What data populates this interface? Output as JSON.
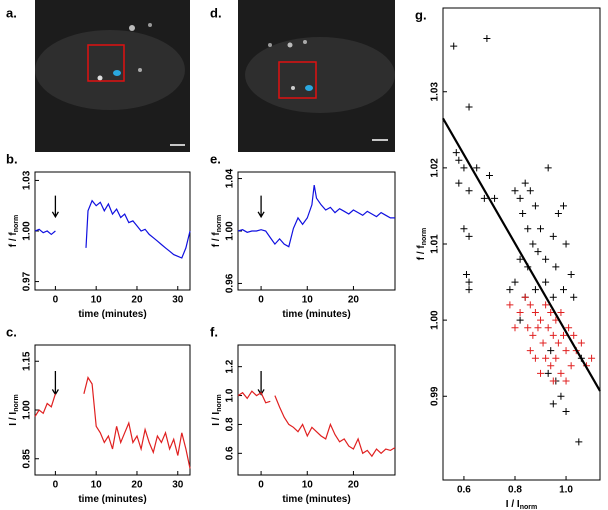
{
  "images": [
    {
      "label": "a."
    },
    {
      "label": "d."
    }
  ],
  "chart_data": [
    {
      "type": "line",
      "label": "b.",
      "ylabel": "f / f",
      "ylabel_sub": "norm",
      "xlabel": "time (minutes)",
      "xlim": [
        -5,
        33
      ],
      "xticks": [
        0,
        10,
        20,
        30
      ],
      "ylim": [
        0.965,
        1.035
      ],
      "yticks": [
        0.97,
        {
          "value": 1,
          "label": "1.00"
        },
        1.03
      ],
      "arrow_x": 0,
      "x": [
        -5,
        -4,
        -3,
        -2,
        -1,
        0,
        4,
        7.5,
        8,
        9,
        10,
        11,
        12,
        13,
        14,
        15,
        16,
        17,
        18,
        19,
        20,
        21,
        22,
        23,
        24,
        25,
        26,
        27,
        28,
        29,
        30,
        31,
        32,
        33
      ],
      "series": [
        {
          "color": "#1010e0",
          "values": [
            1.0,
            1.001,
            0.999,
            1.0,
            0.998,
            1.0,
            null,
            0.99,
            1.012,
            1.018,
            1.015,
            1.017,
            1.012,
            1.016,
            1.01,
            1.013,
            1.008,
            1.01,
            1.005,
            1.006,
            1.003,
            1.0,
            1.001,
            0.998,
            0.996,
            0.994,
            0.992,
            0.99,
            0.988,
            0.986,
            0.985,
            0.984,
            0.99,
            1.0
          ]
        }
      ]
    },
    {
      "type": "line",
      "label": "c.",
      "ylabel": "I / I",
      "ylabel_sub": "norm",
      "xlabel": "time (minutes)",
      "xlim": [
        -5,
        33
      ],
      "xticks": [
        0,
        10,
        20,
        30
      ],
      "ylim": [
        0.8,
        1.2
      ],
      "yticks": [
        0.85,
        {
          "value": 1,
          "label": "1.00"
        },
        1.15
      ],
      "arrow_x": 0,
      "x": [
        -5,
        -4,
        -3,
        -2,
        -1,
        0,
        4,
        7,
        8,
        9,
        10,
        11,
        12,
        13,
        14,
        15,
        16,
        17,
        18,
        19,
        20,
        21,
        22,
        23,
        24,
        25,
        26,
        27,
        28,
        29,
        30,
        31,
        32,
        33
      ],
      "series": [
        {
          "color": "#e02020",
          "values": [
            0.98,
            1.0,
            0.99,
            1.02,
            1.01,
            1.05,
            null,
            1.05,
            1.1,
            1.08,
            0.95,
            0.93,
            0.9,
            0.92,
            0.88,
            0.95,
            0.9,
            0.93,
            0.96,
            0.9,
            0.92,
            0.88,
            0.94,
            0.9,
            0.87,
            0.92,
            0.9,
            0.93,
            0.88,
            0.91,
            0.86,
            0.93,
            0.88,
            0.82
          ]
        }
      ]
    },
    {
      "type": "line",
      "label": "e.",
      "ylabel": "f / f",
      "ylabel_sub": "norm",
      "xlabel": "time (minutes)",
      "xlim": [
        -5,
        29
      ],
      "xticks": [
        0,
        10,
        20
      ],
      "ylim": [
        0.955,
        1.045
      ],
      "yticks": [
        0.96,
        {
          "value": 1,
          "label": "1.00"
        },
        1.04
      ],
      "arrow_x": 0,
      "x": [
        -5,
        -4,
        -3,
        -2,
        -1,
        0,
        1,
        2,
        3,
        4,
        5,
        6,
        7,
        8,
        9,
        10,
        11,
        11.5,
        12,
        13,
        14,
        15,
        16,
        17,
        18,
        19,
        20,
        21,
        22,
        23,
        24,
        25,
        26,
        27,
        28,
        29
      ],
      "series": [
        {
          "color": "#1010e0",
          "values": [
            1.0,
            1.001,
            0.999,
            1.0,
            1.0,
            1.001,
            1.0,
            0.995,
            0.99,
            0.994,
            0.99,
            0.988,
            1.002,
            1.01,
            1.005,
            1.01,
            1.02,
            1.035,
            1.025,
            1.02,
            1.016,
            1.018,
            1.014,
            1.017,
            1.015,
            1.013,
            1.016,
            1.014,
            1.012,
            1.015,
            1.013,
            1.011,
            1.014,
            1.012,
            1.01,
            1.01
          ]
        }
      ]
    },
    {
      "type": "line",
      "label": "f.",
      "ylabel": "I / I",
      "ylabel_sub": "norm",
      "xlabel": "time (minutes)",
      "xlim": [
        -5,
        29
      ],
      "xticks": [
        0,
        10,
        20
      ],
      "ylim": [
        0.45,
        1.35
      ],
      "yticks": [
        0.6,
        0.8,
        {
          "value": 1,
          "label": "1.0"
        },
        1.2
      ],
      "arrow_x": 0,
      "x": [
        -5,
        -4,
        -3,
        -2,
        -1,
        0,
        1,
        2,
        2.5,
        3,
        4,
        5,
        6,
        7,
        8,
        9,
        10,
        11,
        12,
        13,
        14,
        15,
        16,
        17,
        18,
        19,
        20,
        21,
        22,
        23,
        24,
        25,
        26,
        27,
        28,
        29
      ],
      "series": [
        {
          "color": "#e02020",
          "values": [
            1.0,
            1.02,
            0.98,
            1.03,
            1.0,
            1.02,
            0.95,
            0.96,
            null,
            1.0,
            0.92,
            0.85,
            0.8,
            0.78,
            0.75,
            0.8,
            0.72,
            0.78,
            0.75,
            0.72,
            0.7,
            0.8,
            0.73,
            0.68,
            0.7,
            0.65,
            0.63,
            0.7,
            0.6,
            0.62,
            0.58,
            0.63,
            0.6,
            0.63,
            0.62,
            0.64
          ]
        }
      ]
    },
    {
      "type": "scatter",
      "label": "g.",
      "ylabel": "f / f",
      "ylabel_sub": "norm",
      "xlabel": "I / I",
      "xlabel_sub": "norm",
      "xlim": [
        0.518,
        1.133
      ],
      "xticks": [
        0.6,
        0.8,
        {
          "value": 1,
          "label": "1.0"
        }
      ],
      "ylim": [
        0.979,
        1.041
      ],
      "yticks": [
        0.99,
        {
          "value": 1,
          "label": "1.00"
        },
        1.01,
        1.02,
        1.03
      ],
      "fit": {
        "x": [
          0.518,
          1.133
        ],
        "y": [
          1.0265,
          0.9907
        ]
      },
      "series": [
        {
          "color": "#000000",
          "x": [
            0.56,
            0.69,
            0.62,
            0.57,
            0.58,
            0.6,
            0.58,
            0.62,
            0.65,
            0.68,
            0.7,
            0.72,
            0.6,
            0.62,
            0.61,
            0.62,
            0.62,
            0.8,
            0.82,
            0.84,
            0.86,
            0.93,
            0.88,
            0.83,
            0.85,
            0.87,
            0.9,
            0.95,
            0.97,
            0.99,
            0.82,
            0.85,
            0.89,
            0.92,
            0.96,
            1.0,
            0.8,
            0.84,
            0.88,
            0.92,
            0.95,
            0.99,
            1.02,
            1.03,
            0.78,
            0.82,
            0.93,
            0.96,
            0.98,
            0.95,
            1.0,
            1.05,
            0.94,
            1.06
          ],
          "values": [
            1.036,
            1.037,
            1.028,
            1.022,
            1.021,
            1.02,
            1.018,
            1.017,
            1.02,
            1.016,
            1.019,
            1.016,
            1.012,
            1.011,
            1.006,
            1.005,
            1.004,
            1.017,
            1.016,
            1.018,
            1.017,
            1.02,
            1.015,
            1.014,
            1.012,
            1.01,
            1.012,
            1.011,
            1.014,
            1.015,
            1.008,
            1.007,
            1.009,
            1.008,
            1.007,
            1.01,
            1.005,
            1.003,
            1.004,
            1.005,
            1.003,
            1.004,
            1.006,
            1.003,
            1.004,
            1.0,
            0.993,
            0.992,
            0.99,
            0.989,
            0.988,
            0.984,
            0.996,
            0.995
          ]
        },
        {
          "color": "#e02020",
          "x": [
            0.78,
            0.82,
            0.84,
            0.86,
            0.88,
            0.9,
            0.92,
            0.94,
            0.96,
            0.98,
            0.85,
            0.87,
            0.89,
            0.91,
            0.93,
            0.95,
            0.97,
            0.99,
            1.01,
            1.03,
            0.86,
            0.88,
            0.92,
            0.94,
            0.96,
            1.0,
            1.02,
            1.04,
            0.9,
            0.98,
            1.08,
            0.95,
            1.0,
            1.06,
            0.8,
            1.1
          ],
          "values": [
            1.002,
            1.001,
            1.003,
            1.002,
            1.001,
            1.0,
            1.002,
            1.001,
            1.0,
            1.001,
            0.999,
            0.998,
            0.999,
            0.997,
            0.999,
            0.998,
            0.997,
            0.998,
            0.999,
            0.998,
            0.996,
            0.995,
            0.995,
            0.994,
            0.995,
            0.996,
            0.994,
            0.996,
            0.993,
            0.993,
            0.994,
            0.992,
            0.992,
            0.997,
            0.999,
            0.995
          ]
        }
      ]
    }
  ]
}
